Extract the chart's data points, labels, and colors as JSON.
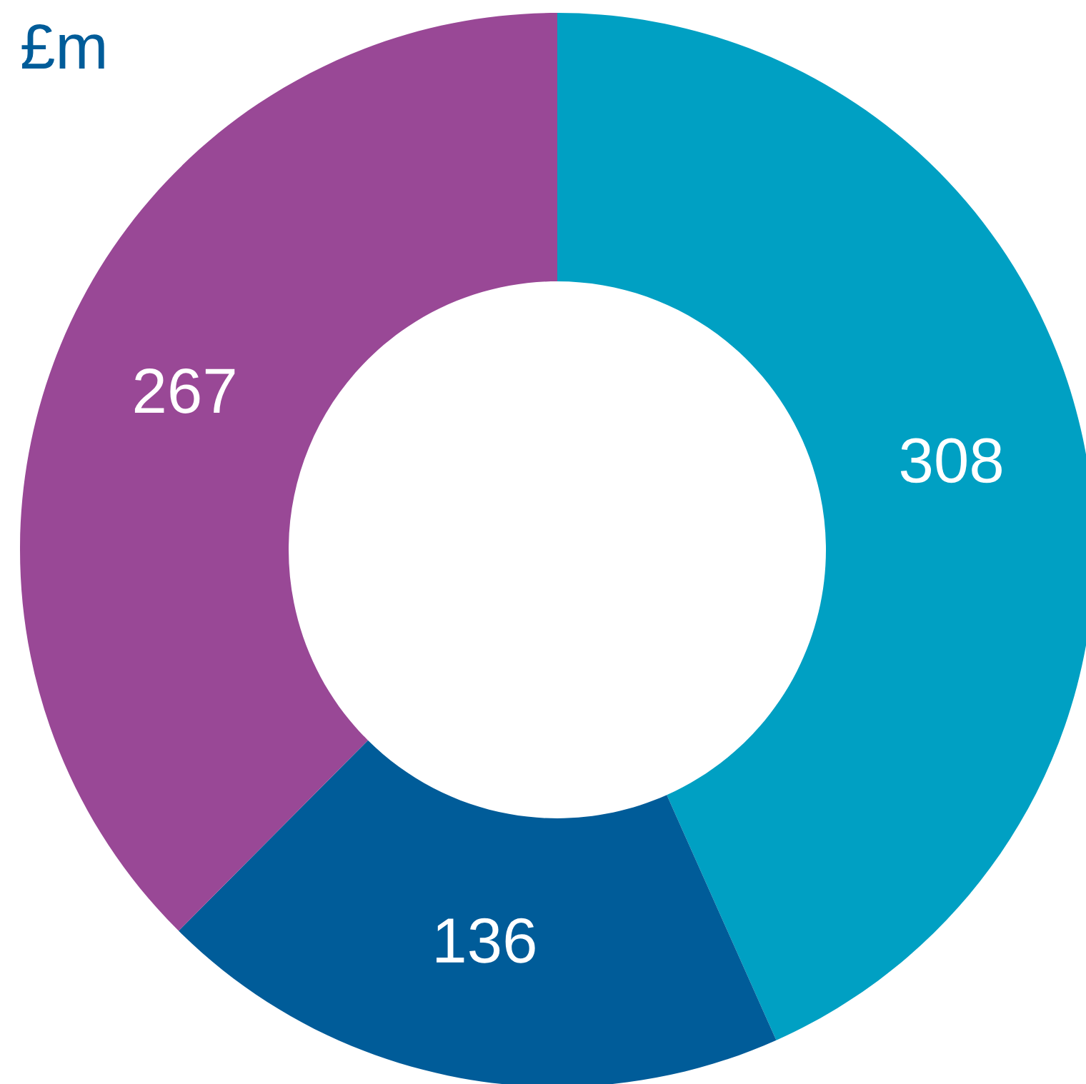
{
  "chart_data": {
    "type": "donut",
    "title": "£m",
    "categories": [
      null,
      null,
      null
    ],
    "values": [
      308,
      136,
      267
    ],
    "colors": [
      "#00a0c3",
      "#005c99",
      "#994896"
    ],
    "data_labels": true
  }
}
